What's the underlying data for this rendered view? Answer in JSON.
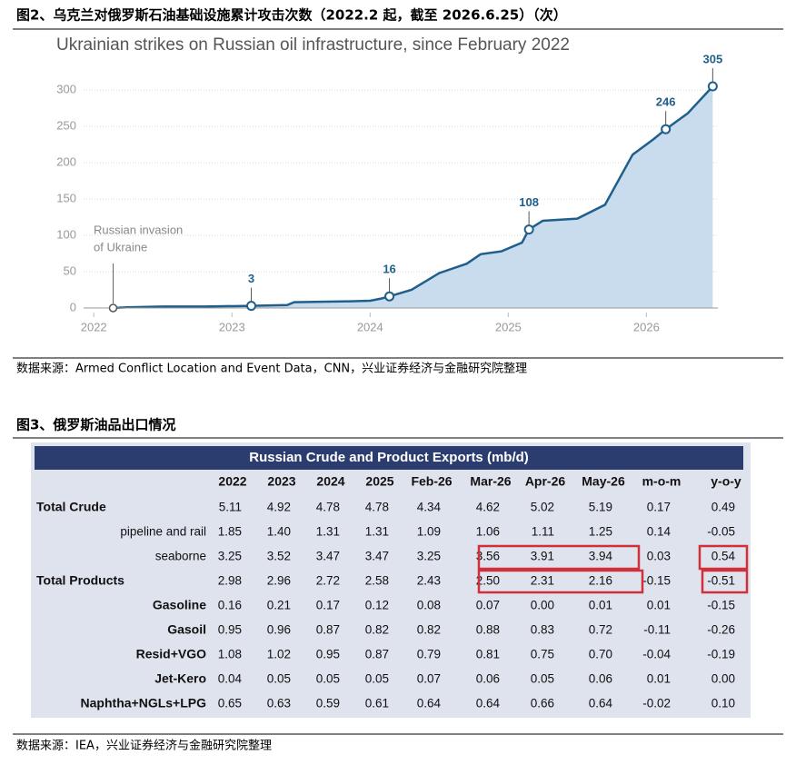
{
  "figure2": {
    "caption": "图2、乌克兰对俄罗斯石油基础设施累计攻击次数（2022.2 起，截至 2026.6.25）（次）",
    "source": "数据来源：Armed Conflict Location and Event Data，CNN，兴业证券经济与金融研究院整理"
  },
  "chart_data": {
    "type": "line",
    "title": "Ukrainian strikes on Russian oil infrastructure, since February 2022",
    "x": [
      2022.14,
      2022.24,
      2022.5,
      2022.8,
      2023.14,
      2023.4,
      2023.45,
      2023.8,
      2024.0,
      2024.08,
      2024.14,
      2024.3,
      2024.5,
      2024.7,
      2024.8,
      2024.95,
      2025.1,
      2025.15,
      2025.25,
      2025.5,
      2025.7,
      2025.9,
      2026.05,
      2026.14,
      2026.3,
      2026.48
    ],
    "values": [
      0,
      1,
      2,
      2,
      3,
      4,
      8,
      9,
      10,
      13,
      16,
      25,
      48,
      61,
      74,
      78,
      90,
      108,
      120,
      123,
      142,
      211,
      232,
      246,
      268,
      305
    ],
    "value_labels": [
      null,
      null,
      null,
      null,
      "3",
      null,
      null,
      null,
      null,
      null,
      "16",
      null,
      null,
      null,
      null,
      null,
      null,
      "108",
      null,
      null,
      null,
      null,
      null,
      "246",
      null,
      "305"
    ],
    "annotation": [
      "Russian invasion",
      "of Ukraine"
    ],
    "color": "#1f5f8b",
    "area_color": "#c9dced",
    "xlim": [
      2021.9,
      2026.55
    ],
    "xticks": [
      2022,
      2023,
      2024,
      2025,
      2026
    ],
    "ylim": [
      0,
      300
    ],
    "yticks": [
      0,
      50,
      100,
      150,
      200,
      250,
      300
    ],
    "grid": true
  },
  "figure3": {
    "caption": "图3、俄罗斯油品出口情况",
    "table": {
      "title": "Russian Crude and Product Exports (mb/d)",
      "columns": [
        "2022",
        "2023",
        "2024",
        "2025",
        "Feb-26",
        "Mar-26",
        "Apr-26",
        "May-26",
        "m-o-m",
        "y-o-y"
      ],
      "rows": [
        {
          "label": "Total Crude",
          "cells": [
            "5.11",
            "4.92",
            "4.78",
            "4.78",
            "4.34",
            "4.62",
            "5.02",
            "5.19",
            "0.17",
            "0.49"
          ]
        },
        {
          "label": "pipeline and rail",
          "cells": [
            "1.85",
            "1.40",
            "1.31",
            "1.31",
            "1.09",
            "1.06",
            "1.11",
            "1.25",
            "0.14",
            "-0.05"
          ]
        },
        {
          "label": "seaborne",
          "cells": [
            "3.25",
            "3.52",
            "3.47",
            "3.47",
            "3.25",
            "3.56",
            "3.91",
            "3.94",
            "0.03",
            "0.54"
          ]
        },
        {
          "label": "Total Products",
          "cells": [
            "2.98",
            "2.96",
            "2.72",
            "2.58",
            "2.43",
            "2.50",
            "2.31",
            "2.16",
            "-0.15",
            "-0.51"
          ]
        },
        {
          "label": "Gasoline",
          "cells": [
            "0.16",
            "0.21",
            "0.17",
            "0.12",
            "0.08",
            "0.07",
            "0.00",
            "0.01",
            "0.01",
            "-0.15"
          ]
        },
        {
          "label": "Gasoil",
          "cells": [
            "0.95",
            "0.96",
            "0.87",
            "0.82",
            "0.82",
            "0.88",
            "0.83",
            "0.72",
            "-0.11",
            "-0.26"
          ]
        },
        {
          "label": "Resid+VGO",
          "cells": [
            "1.08",
            "1.02",
            "0.95",
            "0.87",
            "0.79",
            "0.81",
            "0.75",
            "0.70",
            "-0.04",
            "-0.19"
          ]
        },
        {
          "label": "Jet-Kero",
          "cells": [
            "0.04",
            "0.05",
            "0.05",
            "0.05",
            "0.07",
            "0.06",
            "0.05",
            "0.06",
            "0.01",
            "0.00"
          ]
        },
        {
          "label": "Naphtha+NGLs+LPG",
          "cells": [
            "0.65",
            "0.63",
            "0.59",
            "0.61",
            "0.64",
            "0.64",
            "0.66",
            "0.64",
            "-0.02",
            "0.10"
          ]
        }
      ]
    },
    "source": "数据来源：IEA，兴业证券经济与金融研究院整理"
  }
}
